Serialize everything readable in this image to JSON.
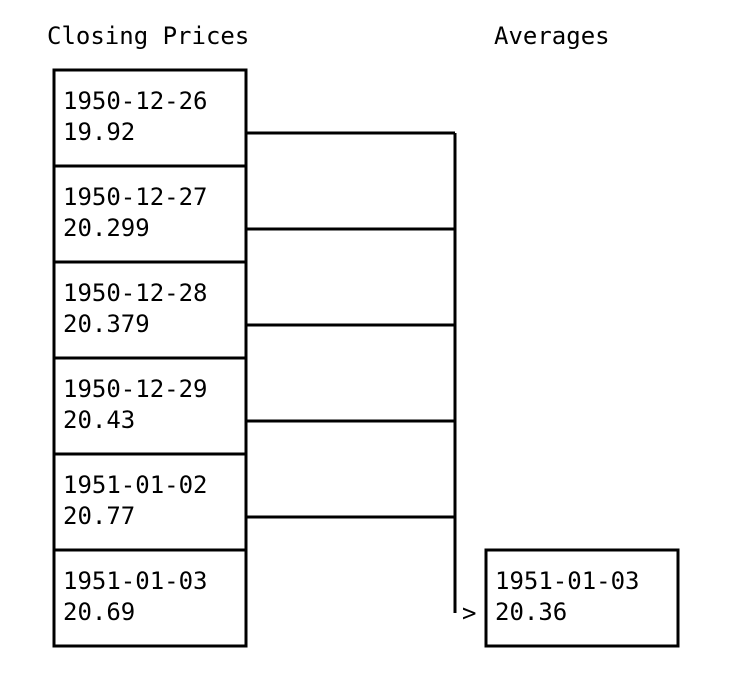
{
  "headers": {
    "left": "Closing Prices",
    "right": "Averages"
  },
  "prices": [
    {
      "date": "1950-12-26",
      "value": "19.92"
    },
    {
      "date": "1950-12-27",
      "value": "20.299"
    },
    {
      "date": "1950-12-28",
      "value": "20.379"
    },
    {
      "date": "1950-12-29",
      "value": "20.43"
    },
    {
      "date": "1951-01-02",
      "value": "20.77"
    },
    {
      "date": "1951-01-03",
      "value": "20.69"
    }
  ],
  "average": {
    "date": "1951-01-03",
    "value": "20.36"
  }
}
